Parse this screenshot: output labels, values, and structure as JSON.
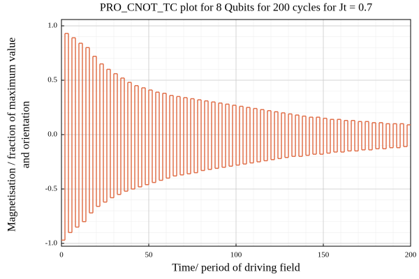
{
  "chart_data": {
    "type": "step",
    "title": "PRO_CNOT_TC plot for 8 Qubits for 200 cycles for Jt = 0.7",
    "xlabel": "Time/ period of driving field",
    "ylabel": [
      "Magnetisation / fraction of maximum value",
      "and orientation"
    ],
    "color": "#e0704a",
    "grid": true,
    "xlim": [
      0,
      200
    ],
    "xticks": [
      0,
      50,
      100,
      150,
      200
    ],
    "ylim": [
      -1.026,
      1.058
    ],
    "yticks": [
      {
        "value": -1,
        "label": "-1.0"
      },
      -0.5,
      {
        "value": 0,
        "label": "0.0"
      },
      0.5,
      {
        "value": 1,
        "label": "1.0"
      }
    ],
    "x": [
      0,
      2,
      4,
      6,
      8,
      10,
      12,
      14,
      16,
      18,
      20,
      22,
      24,
      26,
      28,
      30,
      32,
      34,
      36,
      38,
      40,
      42,
      44,
      46,
      48,
      50,
      52,
      54,
      56,
      58,
      60,
      62,
      64,
      66,
      68,
      70,
      72,
      74,
      76,
      78,
      80,
      82,
      84,
      86,
      88,
      90,
      92,
      94,
      96,
      98,
      100,
      102,
      104,
      106,
      108,
      110,
      112,
      114,
      116,
      118,
      120,
      122,
      124,
      126,
      128,
      130,
      132,
      134,
      136,
      138,
      140,
      142,
      144,
      146,
      148,
      150,
      152,
      154,
      156,
      158,
      160,
      162,
      164,
      166,
      168,
      170,
      172,
      174,
      176,
      178,
      180,
      182,
      184,
      186,
      188,
      190,
      192,
      194,
      196,
      198
    ],
    "values": [
      -0.97,
      0.93,
      -0.9,
      0.89,
      -0.85,
      0.84,
      -0.8,
      0.8,
      -0.72,
      0.72,
      -0.66,
      0.65,
      -0.62,
      0.6,
      -0.58,
      0.56,
      -0.55,
      0.52,
      -0.52,
      0.48,
      -0.5,
      0.45,
      -0.48,
      0.43,
      -0.46,
      0.41,
      -0.44,
      0.39,
      -0.42,
      0.38,
      -0.4,
      0.36,
      -0.38,
      0.35,
      -0.37,
      0.34,
      -0.36,
      0.33,
      -0.35,
      0.32,
      -0.33,
      0.31,
      -0.32,
      0.3,
      -0.31,
      0.29,
      -0.3,
      0.28,
      -0.29,
      0.27,
      -0.28,
      0.26,
      -0.27,
      0.25,
      -0.26,
      0.24,
      -0.25,
      0.23,
      -0.24,
      0.22,
      -0.23,
      0.21,
      -0.22,
      0.2,
      -0.21,
      0.19,
      -0.2,
      0.18,
      -0.2,
      0.17,
      -0.19,
      0.16,
      -0.18,
      0.16,
      -0.18,
      0.15,
      -0.17,
      0.14,
      -0.16,
      0.14,
      -0.16,
      0.13,
      -0.15,
      0.13,
      -0.15,
      0.12,
      -0.14,
      0.12,
      -0.14,
      0.11,
      -0.13,
      0.11,
      -0.13,
      0.1,
      -0.12,
      0.1,
      -0.12,
      0.1,
      -0.11,
      0.09
    ]
  }
}
